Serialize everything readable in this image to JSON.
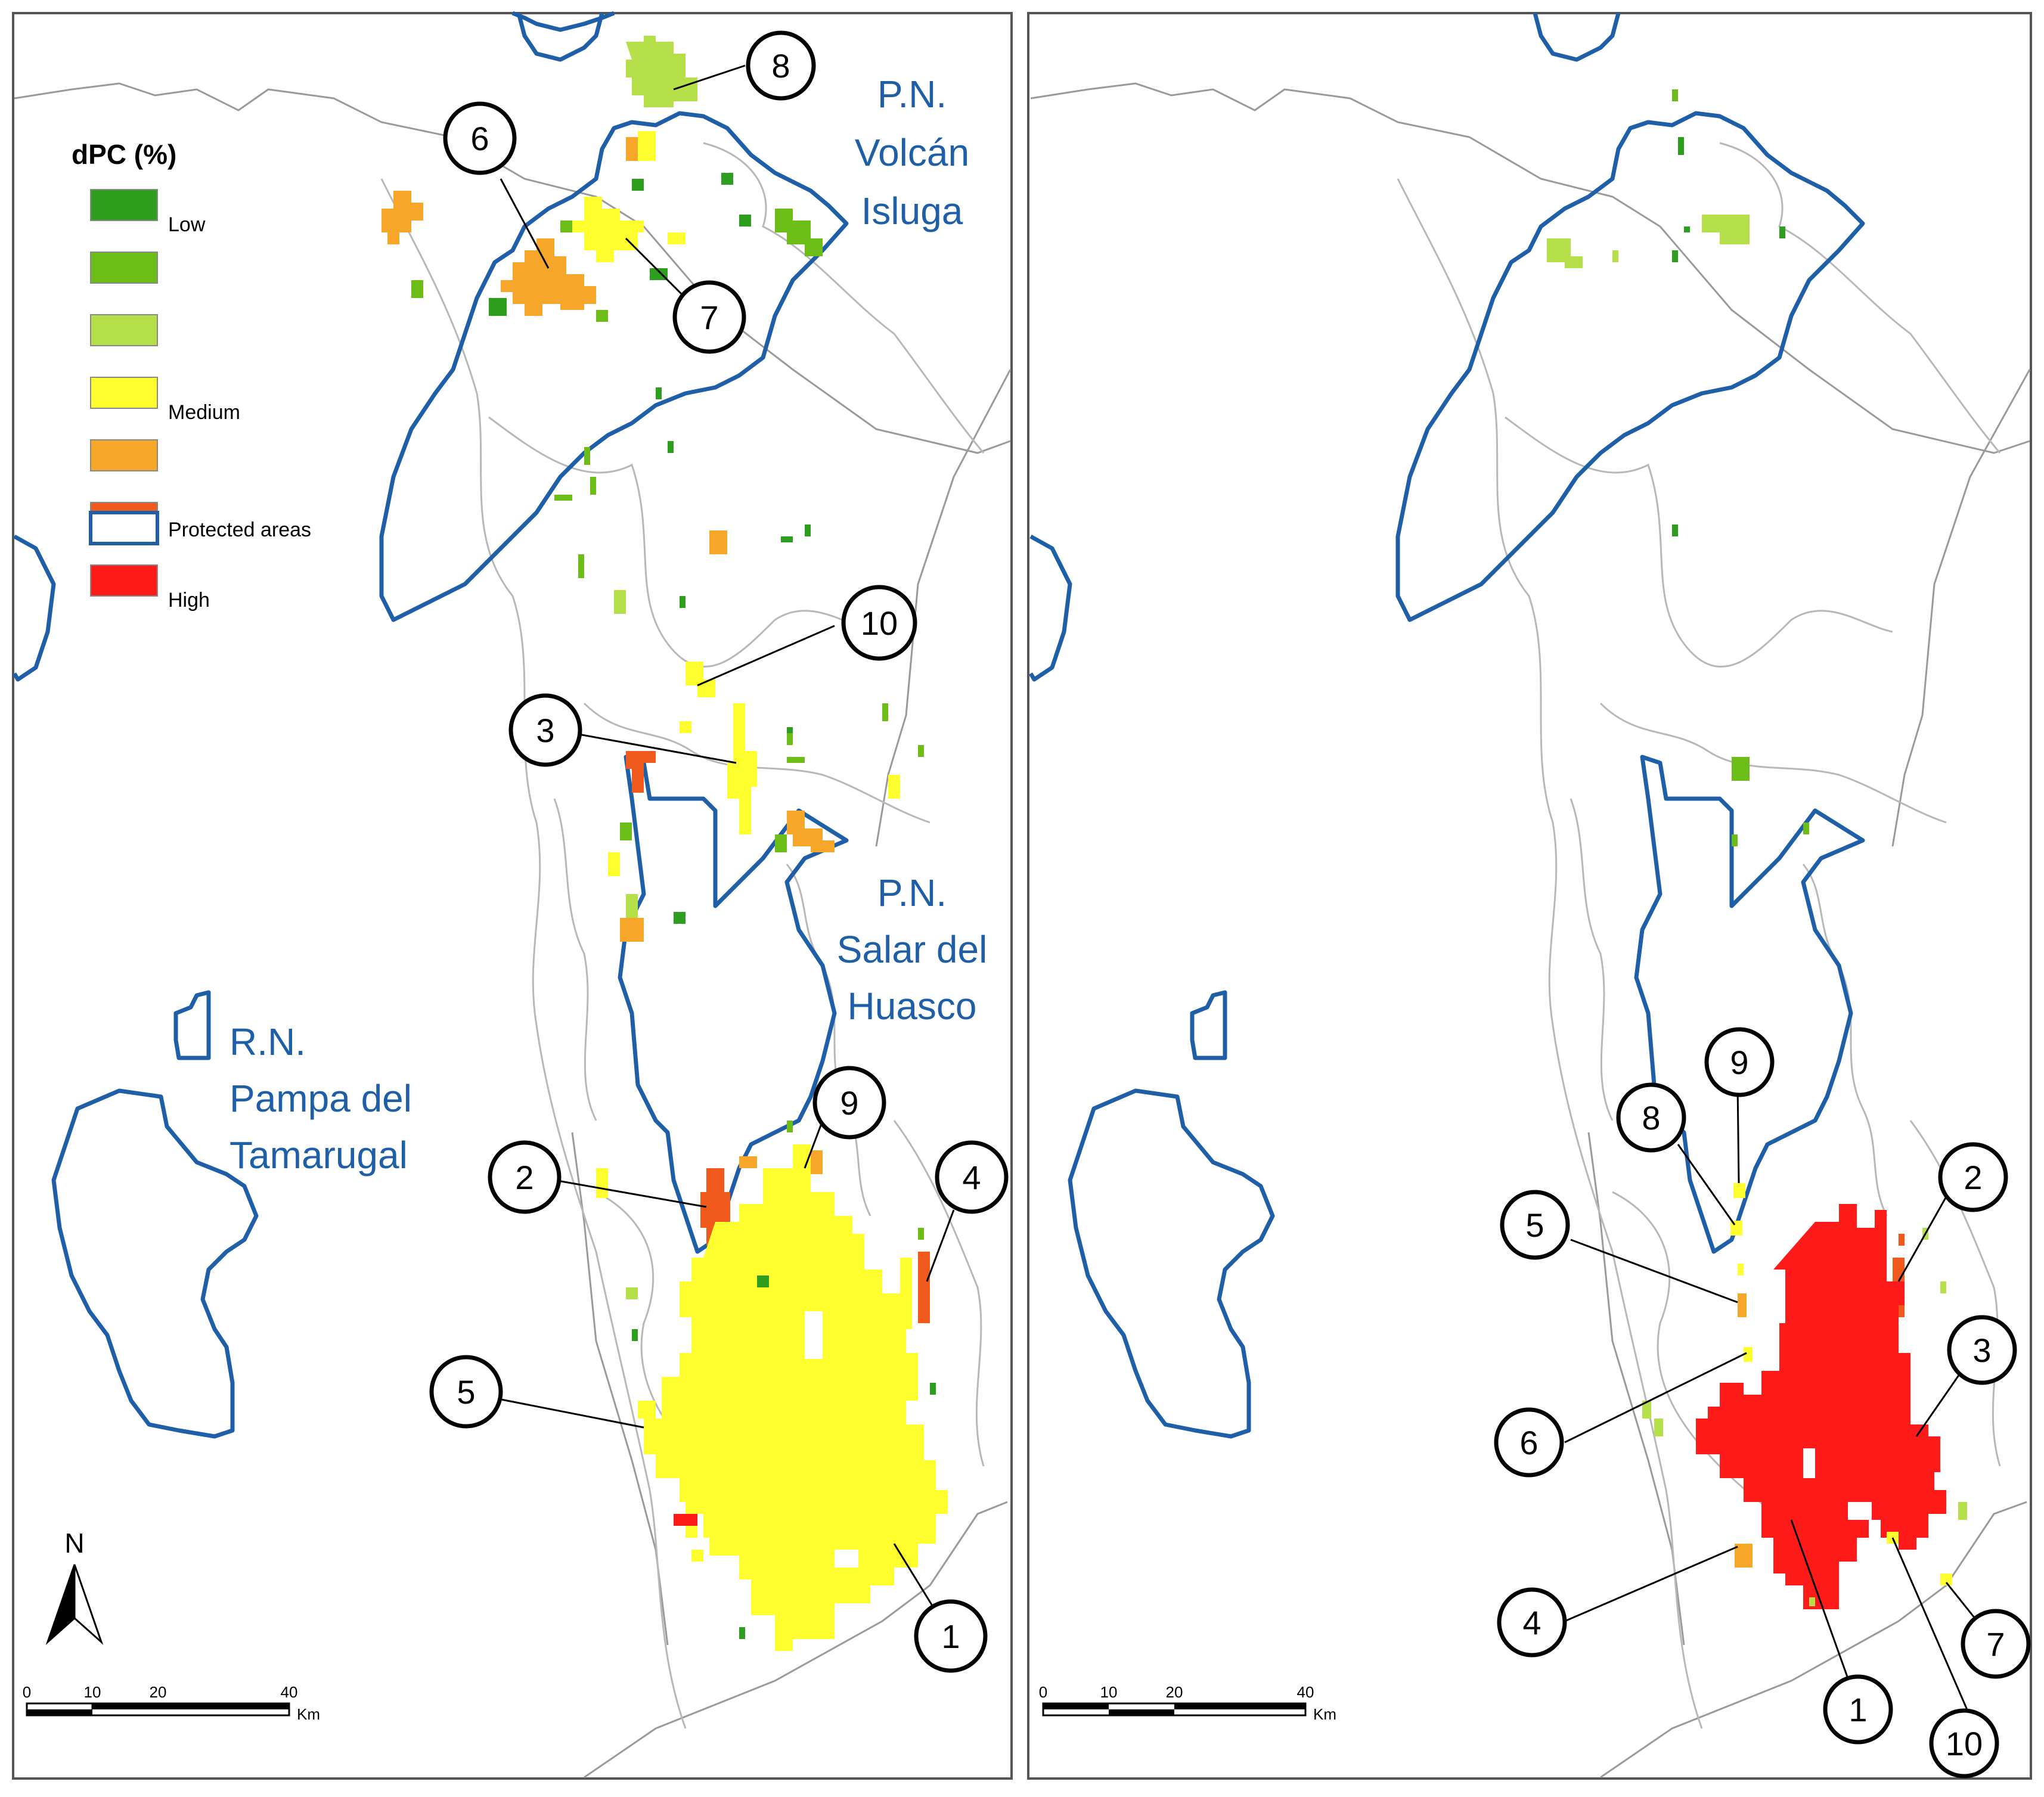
{
  "legend": {
    "title": "dPC (%)",
    "swatches": [
      {
        "color": "#2e9e1e",
        "label": "Low"
      },
      {
        "color": "#6cbd17",
        "label": ""
      },
      {
        "color": "#b5e04a",
        "label": ""
      },
      {
        "color": "#ffff30",
        "label": "Medium"
      },
      {
        "color": "#f6a72a",
        "label": ""
      },
      {
        "color": "#f05a1c",
        "label": ""
      },
      {
        "color": "#ff1a1a",
        "label": "High"
      }
    ],
    "protected_label": "Protected areas",
    "protected_color": "#1f5fa8"
  },
  "north_label": "N",
  "scalebar": {
    "ticks": [
      "0",
      "10",
      "20",
      "40"
    ],
    "unit": "Km"
  },
  "protected_areas": {
    "isluga": [
      "P.N.",
      "Volcán",
      "Isluga"
    ],
    "huasco": [
      "P.N.",
      "Salar del",
      "Huasco"
    ],
    "tamarugal": [
      "R.N.",
      "Pampa del",
      "Tamarugal"
    ]
  },
  "left_callouts": [
    "1",
    "2",
    "3",
    "4",
    "5",
    "6",
    "7",
    "8",
    "9",
    "10"
  ],
  "right_callouts": [
    "1",
    "2",
    "3",
    "4",
    "5",
    "6",
    "7",
    "8",
    "9",
    "10"
  ]
}
